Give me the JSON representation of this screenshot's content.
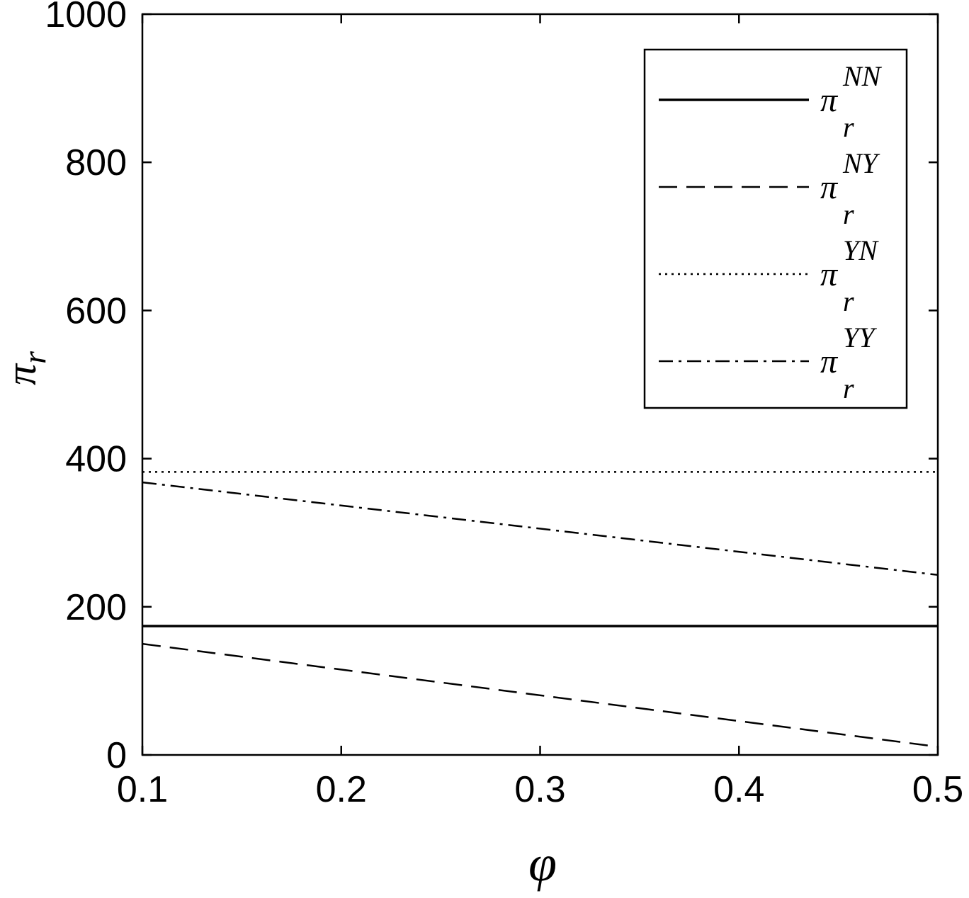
{
  "chart_data": {
    "type": "line",
    "title": "",
    "xlabel": "φ",
    "ylabel": "π",
    "ylabel_subscript": "r",
    "xlim": [
      0.1,
      0.5
    ],
    "ylim": [
      0,
      1000
    ],
    "x_ticks": [
      "0.1",
      "0.2",
      "0.3",
      "0.4",
      "0.5"
    ],
    "y_ticks": [
      "0",
      "200",
      "400",
      "600",
      "800",
      "1000"
    ],
    "grid": false,
    "legend_position": "top-right",
    "series": [
      {
        "name": "π_r^NN",
        "symbol": "π",
        "sub": "r",
        "sup": "NN",
        "style": "solid",
        "x": [
          0.1,
          0.5
        ],
        "y": [
          174,
          174
        ]
      },
      {
        "name": "π_r^NY",
        "symbol": "π",
        "sub": "r",
        "sup": "NY",
        "style": "dashed",
        "x": [
          0.1,
          0.5
        ],
        "y": [
          150,
          11
        ]
      },
      {
        "name": "π_r^YN",
        "symbol": "π",
        "sub": "r",
        "sup": "YN",
        "style": "dotted",
        "x": [
          0.1,
          0.5
        ],
        "y": [
          382,
          382
        ]
      },
      {
        "name": "π_r^YY",
        "symbol": "π",
        "sub": "r",
        "sup": "YY",
        "style": "dashdot",
        "x": [
          0.1,
          0.5
        ],
        "y": [
          368,
          243
        ]
      }
    ]
  }
}
